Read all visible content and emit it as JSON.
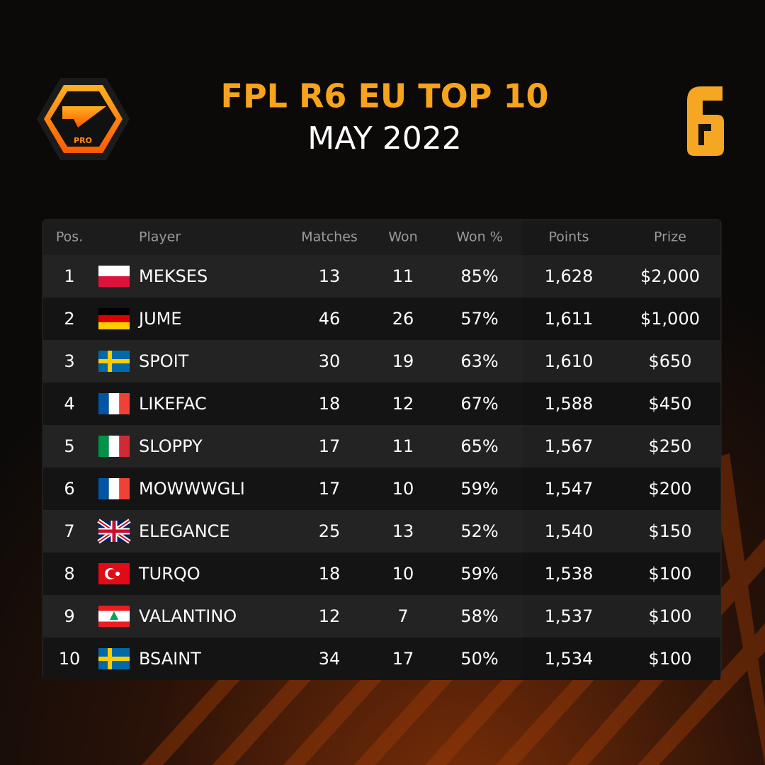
{
  "header": {
    "title": "FPL R6 EU TOP 10",
    "subtitle": "MAY 2022",
    "logo_label": "PRO"
  },
  "table": {
    "columns": [
      "Pos.",
      "Player",
      "Matches",
      "Won",
      "Won %",
      "Points",
      "Prize"
    ],
    "rows": [
      [
        "1",
        "MEKSES",
        "13",
        "11",
        "85%",
        "1,628",
        "$2,000"
      ],
      [
        "2",
        "JUME",
        "46",
        "26",
        "57%",
        "1,611",
        "$1,000"
      ],
      [
        "3",
        "SPOIT",
        "30",
        "19",
        "63%",
        "1,610",
        "$650"
      ],
      [
        "4",
        "LIKEFAC",
        "18",
        "12",
        "67%",
        "1,588",
        "$450"
      ],
      [
        "5",
        "SLOPPY",
        "17",
        "11",
        "65%",
        "1,567",
        "$250"
      ],
      [
        "6",
        "MOWWWGLI",
        "17",
        "10",
        "59%",
        "1,547",
        "$200"
      ],
      [
        "7",
        "ELEGANCE",
        "25",
        "13",
        "52%",
        "1,540",
        "$150"
      ],
      [
        "8",
        "TURQO",
        "18",
        "10",
        "59%",
        "1,538",
        "$100"
      ],
      [
        "9",
        "VALANTINO",
        "12",
        "7",
        "58%",
        "1,537",
        "$100"
      ],
      [
        "10",
        "BSAINT",
        "34",
        "17",
        "50%",
        "1,534",
        "$100"
      ]
    ]
  }
}
